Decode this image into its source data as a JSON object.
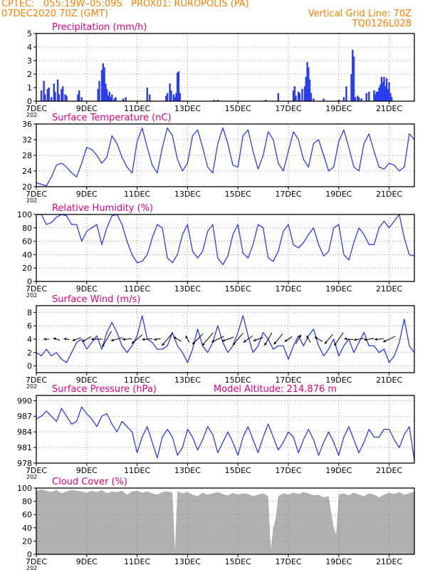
{
  "header": {
    "line1_left": "CPTEC:   055:19W–05:09S   PROX01: RUROPOLIS (PA)",
    "line2_left": "07DEC2020 70Z (GMT)",
    "line2_right": "Vertical Grid Line: 70Z",
    "line3_right": "TQ0126L028"
  },
  "colors": {
    "header": "#ff7f00",
    "title": "#e0007f",
    "line": "#2a3cf0",
    "bar": "#2a3cf0",
    "cloud": "#b0b0b0"
  },
  "x_axis": {
    "unit": "day",
    "range": [
      7,
      22
    ],
    "tick_values": [
      7,
      9,
      11,
      13,
      15,
      17,
      19,
      21
    ],
    "tick_labels": [
      "7DEC",
      "9DEC",
      "11DEC",
      "13DEC",
      "15DEC",
      "17DEC",
      "19DEC",
      "21DEC"
    ],
    "year_label": "202"
  },
  "chart_data": [
    {
      "id": "precip",
      "type": "bar",
      "title": "Precipitation (mm/h)",
      "ylim": [
        0,
        5
      ],
      "yticks": [
        0,
        1,
        2,
        3,
        4,
        5
      ],
      "x": [
        7.2,
        7.3,
        7.35,
        7.45,
        7.5,
        7.6,
        7.7,
        7.75,
        7.85,
        7.9,
        8.0,
        8.05,
        8.15,
        8.2,
        8.65,
        8.7,
        8.8,
        9.45,
        9.5,
        9.6,
        9.65,
        9.7,
        9.75,
        9.8,
        9.85,
        9.9,
        9.95,
        10.0,
        10.1,
        10.15,
        10.45,
        10.55,
        11.4,
        11.5,
        12.15,
        12.2,
        12.3,
        12.35,
        12.45,
        12.5,
        12.55,
        12.6,
        12.65,
        12.7,
        14.05,
        14.2,
        16.1,
        16.6,
        17.2,
        17.25,
        17.3,
        17.4,
        17.45,
        17.55,
        17.65,
        17.7,
        17.75,
        17.8,
        17.85,
        17.9,
        18.0,
        18.4,
        19.0,
        19.2,
        19.3,
        19.5,
        19.55,
        19.6,
        19.65,
        19.75,
        19.8,
        19.9,
        20.1,
        20.2,
        20.4,
        20.45,
        20.5,
        20.55,
        20.6,
        20.65,
        20.7,
        20.75,
        20.8,
        20.85,
        20.9,
        20.95,
        21.0,
        21.05,
        21.1
      ],
      "values": [
        0.8,
        1.5,
        0.5,
        0.9,
        1.0,
        0.3,
        1.3,
        0.7,
        1.6,
        0.5,
        0.9,
        1.1,
        0.5,
        0.4,
        0.5,
        0.8,
        0.3,
        0.9,
        1.5,
        2.3,
        2.8,
        2.5,
        1.3,
        0.9,
        0.4,
        0.7,
        0.3,
        0.5,
        0.2,
        0.3,
        0.2,
        0.3,
        1.0,
        0.5,
        0.4,
        0.6,
        1.3,
        0.8,
        0.5,
        0.3,
        0.6,
        2.1,
        2.2,
        0.6,
        0.1,
        0.1,
        0.1,
        0.6,
        0.8,
        1.1,
        0.4,
        0.7,
        0.6,
        0.9,
        1.1,
        1.8,
        2.9,
        2.5,
        1.6,
        0.6,
        0.2,
        0.2,
        0.1,
        0.3,
        1.1,
        2.0,
        3.8,
        3.3,
        0.3,
        0.4,
        0.3,
        0.2,
        0.6,
        0.7,
        0.8,
        0.5,
        0.7,
        0.7,
        1.0,
        1.2,
        1.8,
        1.4,
        1.8,
        1.1,
        1.7,
        0.9,
        1.4,
        0.6,
        0.3
      ]
    },
    {
      "id": "temp",
      "type": "line",
      "title": "Surface Temperature (nC)",
      "ylim": [
        20,
        36
      ],
      "yticks": [
        20,
        24,
        28,
        32,
        36
      ],
      "x": [
        7.0,
        7.2,
        7.4,
        7.6,
        7.8,
        8.0,
        8.2,
        8.4,
        8.6,
        8.8,
        9.0,
        9.2,
        9.4,
        9.6,
        9.8,
        10.0,
        10.2,
        10.4,
        10.6,
        10.8,
        11.0,
        11.2,
        11.4,
        11.6,
        11.8,
        12.0,
        12.2,
        12.4,
        12.6,
        12.8,
        13.0,
        13.2,
        13.4,
        13.6,
        13.8,
        14.0,
        14.2,
        14.4,
        14.6,
        14.8,
        15.0,
        15.2,
        15.4,
        15.6,
        15.8,
        16.0,
        16.2,
        16.4,
        16.6,
        16.8,
        17.0,
        17.2,
        17.4,
        17.6,
        17.8,
        18.0,
        18.2,
        18.4,
        18.6,
        18.8,
        19.0,
        19.2,
        19.4,
        19.6,
        19.8,
        20.0,
        20.2,
        20.4,
        20.6,
        20.8,
        21.0,
        21.2,
        21.4,
        21.6,
        21.8,
        22.0
      ],
      "series": [
        {
          "values": [
            21.0,
            20.6,
            20.2,
            22.5,
            25.5,
            26.0,
            25.0,
            23.5,
            22.5,
            26.0,
            30.0,
            29.5,
            28.0,
            26.0,
            27.5,
            33.0,
            31.0,
            27.5,
            25.0,
            23.5,
            31.5,
            35.0,
            30.0,
            25.5,
            23.5,
            30.0,
            35.0,
            33.0,
            27.0,
            24.0,
            26.0,
            33.0,
            34.5,
            30.0,
            25.0,
            23.5,
            31.0,
            35.0,
            31.0,
            25.5,
            25.0,
            33.0,
            34.5,
            29.0,
            24.5,
            28.0,
            34.0,
            32.0,
            26.0,
            24.0,
            29.0,
            34.0,
            32.0,
            27.0,
            25.0,
            31.0,
            32.0,
            28.0,
            24.0,
            25.0,
            31.5,
            34.5,
            30.0,
            25.0,
            24.0,
            31.0,
            33.5,
            29.0,
            25.0,
            24.5,
            26.0,
            25.5,
            24.0,
            25.0,
            33.5,
            32.0
          ]
        }
      ]
    },
    {
      "id": "rh",
      "type": "line",
      "title": "Relative Humidity (%)",
      "ylim": [
        0,
        100
      ],
      "yticks": [
        0,
        20,
        40,
        60,
        80,
        100
      ],
      "x": [
        7.0,
        7.2,
        7.4,
        7.6,
        7.8,
        8.0,
        8.2,
        8.4,
        8.6,
        8.8,
        9.0,
        9.2,
        9.4,
        9.6,
        9.8,
        10.0,
        10.2,
        10.4,
        10.6,
        10.8,
        11.0,
        11.2,
        11.4,
        11.6,
        11.8,
        12.0,
        12.2,
        12.4,
        12.6,
        12.8,
        13.0,
        13.2,
        13.4,
        13.6,
        13.8,
        14.0,
        14.2,
        14.4,
        14.6,
        14.8,
        15.0,
        15.2,
        15.4,
        15.6,
        15.8,
        16.0,
        16.2,
        16.4,
        16.6,
        16.8,
        17.0,
        17.2,
        17.4,
        17.6,
        17.8,
        18.0,
        18.2,
        18.4,
        18.6,
        18.8,
        19.0,
        19.2,
        19.4,
        19.6,
        19.8,
        20.0,
        20.2,
        20.4,
        20.6,
        20.8,
        21.0,
        21.2,
        21.4,
        21.6,
        21.8,
        22.0
      ],
      "series": [
        {
          "values": [
            100,
            100,
            85,
            88,
            96,
            100,
            98,
            85,
            85,
            60,
            75,
            80,
            85,
            55,
            80,
            98,
            100,
            85,
            60,
            40,
            28,
            30,
            40,
            65,
            85,
            80,
            35,
            28,
            40,
            70,
            85,
            45,
            35,
            45,
            75,
            85,
            35,
            25,
            38,
            70,
            85,
            42,
            35,
            55,
            85,
            80,
            35,
            30,
            45,
            75,
            85,
            55,
            50,
            58,
            70,
            80,
            55,
            38,
            45,
            80,
            85,
            40,
            32,
            58,
            80,
            70,
            55,
            55,
            80,
            90,
            80,
            90,
            100,
            65,
            40,
            38
          ]
        }
      ]
    },
    {
      "id": "wind",
      "type": "line",
      "title": "Surface Wind (m/s)",
      "ylim": [
        -1,
        9
      ],
      "yticks": [
        0,
        2,
        4,
        6,
        8
      ],
      "x": [
        7.0,
        7.2,
        7.4,
        7.6,
        7.8,
        8.0,
        8.2,
        8.4,
        8.6,
        8.8,
        9.0,
        9.2,
        9.4,
        9.6,
        9.8,
        10.0,
        10.2,
        10.4,
        10.6,
        10.8,
        11.0,
        11.2,
        11.4,
        11.6,
        11.8,
        12.0,
        12.2,
        12.4,
        12.6,
        12.8,
        13.0,
        13.2,
        13.4,
        13.6,
        13.8,
        14.0,
        14.2,
        14.4,
        14.6,
        14.8,
        15.0,
        15.2,
        15.4,
        15.6,
        15.8,
        16.0,
        16.2,
        16.4,
        16.6,
        16.8,
        17.0,
        17.2,
        17.4,
        17.6,
        17.8,
        18.0,
        18.2,
        18.4,
        18.6,
        18.8,
        19.0,
        19.2,
        19.4,
        19.6,
        19.8,
        20.0,
        20.2,
        20.4,
        20.6,
        20.8,
        21.0,
        21.2,
        21.4,
        21.6,
        21.8,
        22.0
      ],
      "series": [
        {
          "values": [
            2.0,
            1.5,
            2.5,
            1.5,
            2.0,
            1.0,
            0.5,
            2.0,
            3.5,
            4.0,
            2.5,
            3.5,
            4.5,
            2.5,
            5.0,
            6.5,
            5.0,
            3.0,
            2.0,
            3.0,
            4.5,
            7.5,
            4.0,
            3.5,
            2.5,
            2.5,
            3.0,
            5.0,
            3.0,
            2.0,
            0.5,
            2.5,
            5.5,
            3.0,
            2.0,
            3.5,
            6.0,
            3.5,
            2.0,
            3.0,
            5.0,
            7.5,
            4.5,
            2.0,
            3.0,
            5.0,
            4.0,
            2.5,
            3.0,
            3.0,
            1.0,
            3.0,
            4.5,
            3.0,
            4.5,
            5.5,
            3.0,
            1.5,
            2.5,
            4.0,
            1.5,
            3.0,
            4.0,
            2.0,
            3.5,
            5.0,
            3.0,
            3.0,
            2.0,
            2.5,
            0.5,
            1.5,
            3.5,
            7.0,
            3.0,
            2.0
          ]
        }
      ],
      "vector_x": [
        7.4,
        7.8,
        8.2,
        8.6,
        9.0,
        9.4,
        9.8,
        10.2,
        10.6,
        11.0,
        11.4,
        11.8,
        12.2,
        12.6,
        13.0,
        13.4,
        13.8,
        14.2,
        14.6,
        15.0,
        15.4,
        15.8,
        16.2,
        16.6,
        17.0,
        17.4,
        17.8,
        18.2,
        18.6,
        19.0,
        19.4,
        19.8,
        20.2,
        20.6,
        21.0
      ],
      "vector_angle_deg": [
        180,
        160,
        170,
        200,
        210,
        180,
        240,
        195,
        185,
        220,
        185,
        190,
        230,
        150,
        120,
        225,
        230,
        205,
        200,
        230,
        215,
        200,
        240,
        230,
        215,
        60,
        120,
        150,
        230,
        235,
        175,
        190,
        190,
        185,
        205
      ],
      "vector_length": [
        0.5,
        0.6,
        0.5,
        0.8,
        0.9,
        1.0,
        1.6,
        1.1,
        0.8,
        1.2,
        0.9,
        0.6,
        1.5,
        0.8,
        0.7,
        1.3,
        1.5,
        1.2,
        1.1,
        1.4,
        1.0,
        0.9,
        1.3,
        1.2,
        0.8,
        0.9,
        0.7,
        0.8,
        1.1,
        1.4,
        0.8,
        0.9,
        0.9,
        0.8,
        1.2
      ]
    },
    {
      "id": "pres",
      "type": "line",
      "title": "Surface Pressure (hPa)",
      "annotation": "Model Altitude: 214.876 m",
      "ylim": [
        978,
        991
      ],
      "yticks": [
        978,
        981,
        984,
        987,
        990
      ],
      "x": [
        7.0,
        7.2,
        7.4,
        7.6,
        7.8,
        8.0,
        8.2,
        8.4,
        8.6,
        8.8,
        9.0,
        9.2,
        9.4,
        9.6,
        9.8,
        10.0,
        10.2,
        10.4,
        10.6,
        10.8,
        11.0,
        11.2,
        11.4,
        11.6,
        11.8,
        12.0,
        12.2,
        12.4,
        12.6,
        12.8,
        13.0,
        13.2,
        13.4,
        13.6,
        13.8,
        14.0,
        14.2,
        14.4,
        14.6,
        14.8,
        15.0,
        15.2,
        15.4,
        15.6,
        15.8,
        16.0,
        16.2,
        16.4,
        16.6,
        16.8,
        17.0,
        17.2,
        17.4,
        17.6,
        17.8,
        18.0,
        18.2,
        18.4,
        18.6,
        18.8,
        19.0,
        19.2,
        19.4,
        19.6,
        19.8,
        20.0,
        20.2,
        20.4,
        20.6,
        20.8,
        21.0,
        21.2,
        21.4,
        21.6,
        21.8,
        22.0
      ],
      "series": [
        {
          "values": [
            986.5,
            987.0,
            988.0,
            987.0,
            986.0,
            988.5,
            987.0,
            985.5,
            986.0,
            988.8,
            987.5,
            986.5,
            985.0,
            987.0,
            987.5,
            985.5,
            984.0,
            986.0,
            985.0,
            984.0,
            980.0,
            983.0,
            985.0,
            982.0,
            979.0,
            983.0,
            984.5,
            983.0,
            979.5,
            981.0,
            984.5,
            983.0,
            980.5,
            982.5,
            985.0,
            983.5,
            980.0,
            982.0,
            984.0,
            982.0,
            979.5,
            983.0,
            985.0,
            982.5,
            980.0,
            983.0,
            985.5,
            983.0,
            980.5,
            982.0,
            984.0,
            983.0,
            980.0,
            982.5,
            984.5,
            982.5,
            979.5,
            982.0,
            984.0,
            982.0,
            979.5,
            983.0,
            985.0,
            982.5,
            980.0,
            982.0,
            984.5,
            983.0,
            983.0,
            984.5,
            984.5,
            982.5,
            981.0,
            983.5,
            985.0,
            978.5
          ]
        }
      ]
    },
    {
      "id": "cloud",
      "type": "area",
      "title": "Cloud Cover (%)",
      "ylim": [
        0,
        100
      ],
      "yticks": [
        0,
        20,
        40,
        60,
        80,
        100
      ],
      "x": [
        7.0,
        7.2,
        7.4,
        7.6,
        7.8,
        8.0,
        8.2,
        8.4,
        8.6,
        8.8,
        9.0,
        9.2,
        9.4,
        9.6,
        9.8,
        10.0,
        10.2,
        10.4,
        10.6,
        10.8,
        11.0,
        11.2,
        11.4,
        11.6,
        11.8,
        12.0,
        12.2,
        12.4,
        12.5,
        12.6,
        12.8,
        13.0,
        13.2,
        13.4,
        13.6,
        13.8,
        14.0,
        14.2,
        14.4,
        14.6,
        14.8,
        15.0,
        15.2,
        15.4,
        15.6,
        15.8,
        16.0,
        16.2,
        16.3,
        16.4,
        16.5,
        16.6,
        16.8,
        17.0,
        17.2,
        17.4,
        17.6,
        17.8,
        18.0,
        18.2,
        18.4,
        18.6,
        18.8,
        18.9,
        19.0,
        19.2,
        19.4,
        19.6,
        19.8,
        20.0,
        20.2,
        20.4,
        20.6,
        20.8,
        21.0,
        21.2,
        21.4,
        21.6,
        21.8,
        22.0
      ],
      "series": [
        {
          "values": [
            95,
            98,
            96,
            94,
            97,
            92,
            95,
            97,
            96,
            95,
            93,
            96,
            94,
            97,
            92,
            95,
            94,
            96,
            90,
            95,
            96,
            93,
            95,
            92,
            90,
            94,
            95,
            93,
            5,
            95,
            92,
            94,
            90,
            88,
            93,
            90,
            92,
            94,
            91,
            89,
            93,
            90,
            92,
            91,
            88,
            90,
            92,
            88,
            8,
            40,
            55,
            88,
            92,
            90,
            93,
            91,
            94,
            92,
            89,
            90,
            86,
            88,
            40,
            30,
            90,
            92,
            89,
            93,
            90,
            88,
            92,
            90,
            86,
            90,
            93,
            91,
            94,
            90,
            92,
            95
          ]
        }
      ]
    }
  ]
}
